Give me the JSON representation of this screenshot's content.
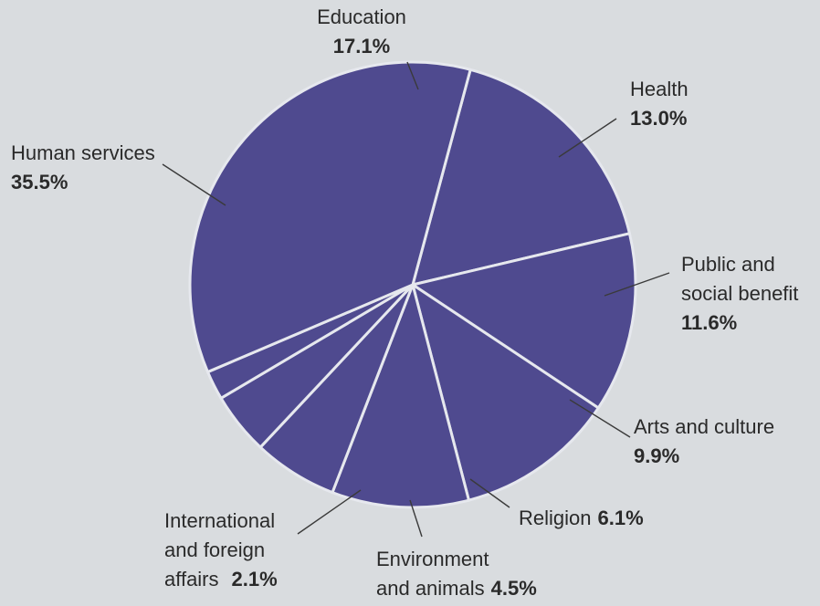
{
  "chart_data": {
    "type": "pie",
    "title": "",
    "colors": {
      "slice": "#4f4a8f",
      "separator": "#e6e8ee",
      "text": "#2a2a2a",
      "leader": "#3a3a3a"
    },
    "slices": [
      {
        "label_lines": [
          "Education"
        ],
        "label": "Education",
        "value": 17.1,
        "pct_text": "17.1%"
      },
      {
        "label_lines": [
          "Health"
        ],
        "label": "Health",
        "value": 13.0,
        "pct_text": "13.0%"
      },
      {
        "label_lines": [
          "Public and",
          "social benefit"
        ],
        "label": "Public and social benefit",
        "value": 11.6,
        "pct_text": "11.6%"
      },
      {
        "label_lines": [
          "Arts and culture"
        ],
        "label": "Arts and culture",
        "value": 9.9,
        "pct_text": "9.9%"
      },
      {
        "label_lines": [
          "Religion"
        ],
        "label": "Religion",
        "value": 6.1,
        "pct_text": "6.1%"
      },
      {
        "label_lines": [
          "Environment",
          "and animals"
        ],
        "label": "Environment and animals",
        "value": 4.5,
        "pct_text": "4.5%"
      },
      {
        "label_lines": [
          "International",
          "and foreign",
          "affairs"
        ],
        "label": "International and foreign affairs",
        "value": 2.1,
        "pct_text": "2.1%"
      },
      {
        "label_lines": [
          "Human services"
        ],
        "label": "Human services",
        "value": 35.5,
        "pct_text": "35.5%"
      }
    ]
  }
}
